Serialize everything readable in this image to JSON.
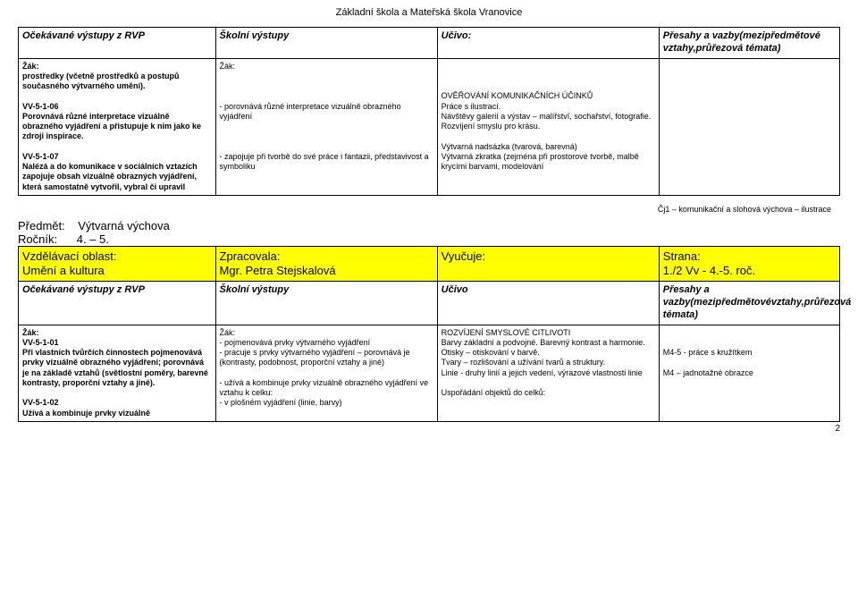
{
  "page_header": "Základní škola a Mateřská škola Vranovice",
  "table1": {
    "headers": {
      "col1": "Očekávané výstupy z RVP",
      "col2": "Školní výstupy",
      "col3": "Učivo:",
      "col4": "Přesahy a vazby(mezipředmětové vztahy,průřezová témata)"
    },
    "row": {
      "col1_a": "Žák:\nprostředky (včetně prostředků a postupů současného výtvarného umění).",
      "col1_b": "VV-5-1-06\nPorovnává různé interpretace vizuálně obrazného vyjádření a přistupuje k nim jako ke zdroji inspirace.",
      "col1_c": "VV-5-1-07\nNalézá a do komunikace v sociálních vztazích zapojuje obsah vizuálně obrazných vyjádření, která samostatně vytvořil, vybral či upravil",
      "col2_a": "Žák:",
      "col2_b": "- porovnává různé interpretace vizuálně obrazného vyjádření",
      "col2_c": "- zapojuje při tvorbě do své práce i fantazii, představivost a symboliku",
      "col3_a": "OVĚŘOVÁNÍ KOMUNIKAČNÍCH ÚČINKŮ\nPráce s ilustrací.\nNávštěvy galerií a výstav – malířství, sochařství, fotografie.\nRozvíjení smyslu pro krásu.",
      "col3_b": "Výtvarná nadsázka (tvarová, barevná)\nVýtvarná zkratka (zejména při prostorové tvorbě, malbě krycími barvami, modelování",
      "col4": ""
    }
  },
  "footnote": "Čj1 – komunikační a slohová výchova – ilustrace",
  "section2": {
    "subject_label": "Předmět:",
    "subject_value": "Výtvarná výchova",
    "grade_label": "Ročník:",
    "grade_value": "4. – 5."
  },
  "table2": {
    "yellow_row": {
      "col1_label": "Vzdělávací oblast:",
      "col1_value": "Umění a kultura",
      "col2_label": "Zpracovala:",
      "col2_value": "Mgr. Petra Stejskalová",
      "col3_label": "Vyučuje:",
      "col3_value": "",
      "col4_label": "Strana:",
      "col4_value": "1./2   Vv  - 4.-5. roč."
    },
    "head2": {
      "col1": "Očekávané výstupy z RVP",
      "col2": "Školní výstupy",
      "col3": "Učivo",
      "col4": "Přesahy a vazby(mezipředmětovévztahy,průřezová témata)"
    },
    "row2": {
      "col1_a": "Žák:\nVV-5-1-01\nPři vlastních tvůrčích činnostech pojmenovává prvky vizuálně obrazného vyjádření; porovnává je na základě vztahů (světlostní poměry, barevné kontrasty, proporční vztahy a jiné).",
      "col1_b": "VV-5-1-02\nUžívá a kombinuje prvky vizuálně",
      "col2": "Žák:\n- pojmenovává prvky výtvarného vyjádření\n- pracuje s prvky výtvarného vyjádření – porovnává je (kontrasty, podobnost, proporční vztahy a jiné)\n\n- užívá a kombinuje prvky vizuálně obrazného vyjádření ve vztahu k celku:\n- v plošném vyjádření (linie, barvy)",
      "col3": "ROZVÍJENÍ SMYSLOVÉ CITLIVOTI\nBarvy základní a podvojné. Barevný kontrast a harmonie.\nOtisky – otiskování v barvě.\nTvary – rozlišování a užívání tvarů a struktury.\nLinie - druhy linií a jejich vedení, výrazové vlastnosti linie\n\nUspořádání objektů do celků:",
      "col4": "\n\nM4-5 - práce s kružítkem\n\nM4 – jadnotažné obrazce"
    }
  },
  "page_number": "2",
  "colors": {
    "highlight": "#ffff00",
    "border": "#000000",
    "background": "#ffffff",
    "text": "#000000"
  }
}
